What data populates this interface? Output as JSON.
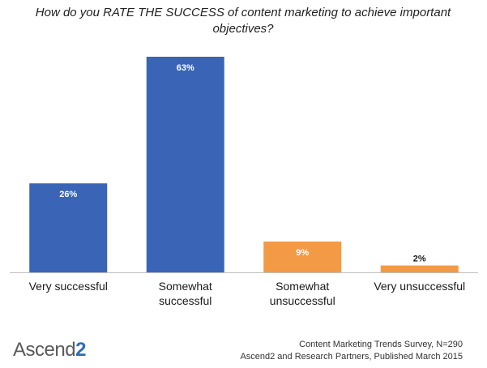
{
  "chart_data": {
    "type": "bar",
    "title": "How do you RATE THE SUCCESS of content marketing to achieve important objectives?",
    "categories": [
      "Very successful",
      "Somewhat successful",
      "Somewhat unsuccessful",
      "Very unsuccessful"
    ],
    "category_lines": [
      [
        "Very successful"
      ],
      [
        "Somewhat",
        "successful"
      ],
      [
        "Somewhat",
        "unsuccessful"
      ],
      [
        "Very unsuccessful"
      ]
    ],
    "values": [
      26,
      63,
      9,
      2
    ],
    "value_labels": [
      "26%",
      "63%",
      "9%",
      "2%"
    ],
    "bar_colors": [
      "#3a64b5",
      "#3a64b5",
      "#f29a46",
      "#f29a46"
    ],
    "value_label_colors": [
      "#ffffff",
      "#ffffff",
      "#ffffff",
      "#1a1a1a"
    ],
    "ylim": [
      0,
      63
    ],
    "grid": false,
    "xlabel": "",
    "ylabel": ""
  },
  "footer": {
    "logo_text": "Ascend",
    "logo_suffix": "2",
    "source_line1": "Content Marketing Trends Survey, N=290",
    "source_line2": "Ascend2 and Research Partners, Published March 2015"
  }
}
